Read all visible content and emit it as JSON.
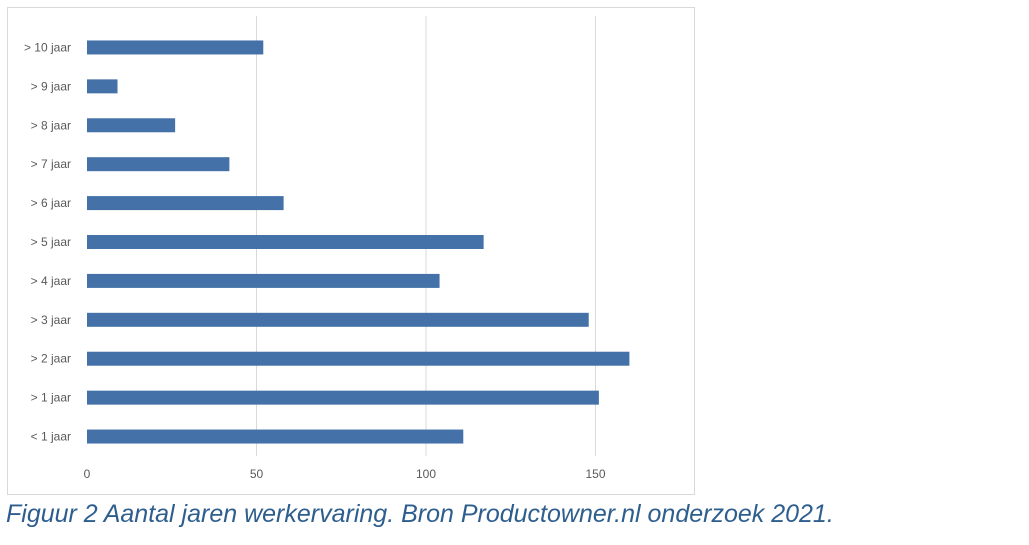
{
  "chart_data": {
    "type": "bar",
    "orientation": "horizontal",
    "categories": [
      "< 1 jaar",
      "> 1 jaar",
      "> 2 jaar",
      "> 3 jaar",
      "> 4 jaar",
      "> 5 jaar",
      "> 6 jaar",
      "> 7 jaar",
      "> 8 jaar",
      "> 9 jaar",
      "> 10 jaar"
    ],
    "values": [
      111,
      151,
      160,
      148,
      104,
      117,
      58,
      42,
      26,
      9,
      52
    ],
    "xticks": [
      0,
      50,
      100,
      150
    ],
    "xlim": [
      0,
      180
    ],
    "grid": true,
    "legend": "none",
    "bar_color": "#4472a8",
    "title": "",
    "xlabel": "",
    "ylabel": ""
  },
  "caption": "Figuur 2 Aantal jaren werkervaring. Bron Productowner.nl onderzoek 2021."
}
